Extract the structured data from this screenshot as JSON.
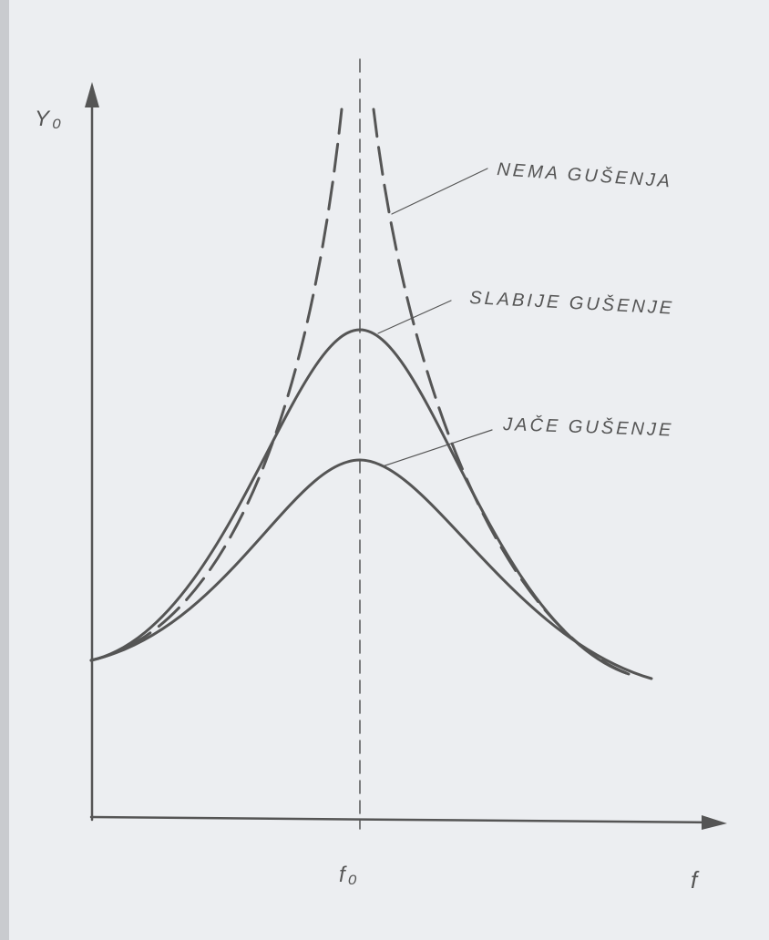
{
  "axes": {
    "y_label": "Y₀",
    "x_label": "f",
    "center_label": "f₀"
  },
  "curves": [
    {
      "label": "NEMA GUŠENJA"
    },
    {
      "label": "SLABIJE GUŠENJE"
    },
    {
      "label": "JAČE GUŠENJE"
    }
  ]
}
